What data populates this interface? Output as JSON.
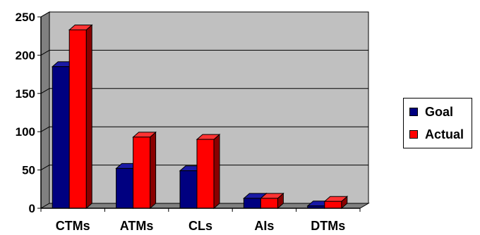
{
  "chart_data": {
    "type": "bar",
    "categories": [
      "CTMs",
      "ATMs",
      "CLs",
      "AIs",
      "DTMs"
    ],
    "series": [
      {
        "name": "Goal",
        "values": [
          185,
          52,
          49,
          13,
          3
        ]
      },
      {
        "name": "Actual",
        "values": [
          233,
          93,
          90,
          13,
          9
        ]
      }
    ],
    "ylim": [
      0,
      250
    ],
    "yticks": [
      "0",
      "50",
      "100",
      "150",
      "200",
      "250"
    ],
    "grid": true,
    "three_d": true,
    "legend_position": "right",
    "colors": {
      "goal_front": "#000080",
      "goal_top": "#1a1aa6",
      "goal_side": "#00004a",
      "actual_front": "#ff0000",
      "actual_top": "#ff3333",
      "actual_side": "#8a0000",
      "plot_back": "#c0c0c0",
      "plot_side": "#808080",
      "plot_floor": "#808080"
    }
  }
}
